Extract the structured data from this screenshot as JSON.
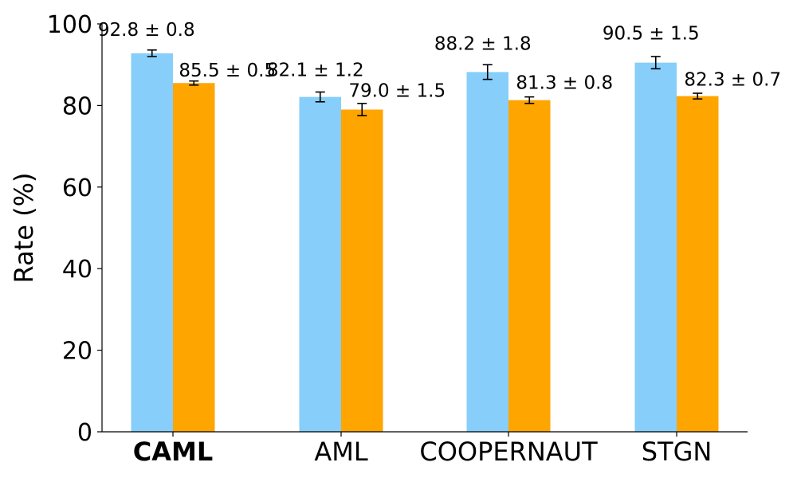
{
  "chart_data": {
    "type": "bar",
    "title": "",
    "xlabel": "",
    "ylabel": "Rate (%)",
    "ylim": [
      0,
      100
    ],
    "yticks": [
      0,
      20,
      40,
      60,
      80,
      100
    ],
    "categories": [
      "CAML",
      "AML",
      "COOPERNAUT",
      "STGN"
    ],
    "bold_categories": [
      "CAML"
    ],
    "grid": false,
    "legend": "none",
    "series": [
      {
        "color": "#87CEFA",
        "values": [
          92.8,
          82.1,
          88.2,
          90.5
        ],
        "errors": [
          0.8,
          1.2,
          1.8,
          1.5
        ],
        "labels": [
          "92.8 ± 0.8",
          "82.1 ± 1.2",
          "88.2 ± 1.8",
          "90.5 ± 1.5"
        ]
      },
      {
        "color": "#FFA500",
        "values": [
          85.5,
          79.0,
          81.3,
          82.3
        ],
        "errors": [
          0.5,
          1.5,
          0.8,
          0.7
        ],
        "labels": [
          "85.5 ± 0.5",
          "79.0 ± 1.5",
          "81.3 ± 0.8",
          "82.3 ± 0.7"
        ]
      }
    ]
  }
}
